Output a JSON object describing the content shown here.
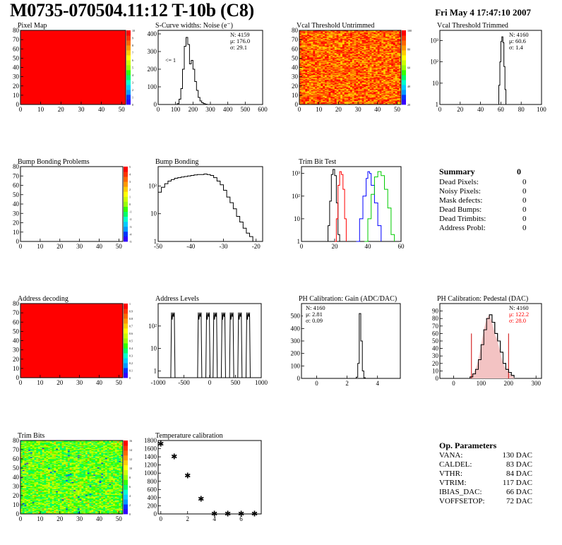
{
  "header": {
    "title": "M0735-070504.11:12 T-10b (C8)",
    "datetime": "Fri May  4 17:47:10 2007"
  },
  "colors": {
    "red": "#ff0000",
    "blue": "#0000ff",
    "green": "#00cc00",
    "dark_red": "#cc0000"
  },
  "summary": {
    "title": "Summary",
    "total": "0",
    "rows": [
      {
        "label": "Dead Pixels:",
        "value": "0"
      },
      {
        "label": "Noisy Pixels:",
        "value": "0"
      },
      {
        "label": "Mask defects:",
        "value": "0"
      },
      {
        "label": "Dead Bumps:",
        "value": "0"
      },
      {
        "label": "Dead Trimbits:",
        "value": "0"
      },
      {
        "label": "Address Probl:",
        "value": "0"
      }
    ]
  },
  "op_params": {
    "title": "Op. Parameters",
    "rows": [
      {
        "label": "VANA:",
        "value": "130 DAC"
      },
      {
        "label": "CALDEL:",
        "value": "83 DAC"
      },
      {
        "label": "VTHR:",
        "value": "84 DAC"
      },
      {
        "label": "VTRIM:",
        "value": "117 DAC"
      },
      {
        "label": "IBIAS_DAC:",
        "value": "66 DAC"
      },
      {
        "label": "VOFFSETOP:",
        "value": "72 DAC"
      }
    ]
  },
  "chart_data": [
    {
      "id": "pixel-map",
      "type": "heatmap",
      "title": "Pixel Map",
      "fill": "uniform-red",
      "xlim": [
        0,
        52
      ],
      "ylim": [
        0,
        80
      ],
      "xticks": [
        0,
        10,
        20,
        30,
        40,
        50
      ],
      "yticks": [
        0,
        10,
        20,
        30,
        40,
        50,
        60,
        70,
        80
      ],
      "zlim": [
        0,
        10
      ],
      "zticks": [
        0,
        1,
        2,
        3,
        4,
        5,
        6,
        7,
        8,
        9,
        10
      ]
    },
    {
      "id": "scurve-widths",
      "type": "histogram",
      "title": "S-Curve widths: Noise (e⁻)",
      "xlim": [
        0,
        600
      ],
      "ylim": [
        0,
        420
      ],
      "xticks": [
        0,
        100,
        200,
        300,
        400,
        500,
        600
      ],
      "yticks": [
        0,
        100,
        200,
        300,
        400
      ],
      "annotation": "<= 1",
      "stats": [
        {
          "label": "N: 4159"
        },
        {
          "label": "μ: 176.0"
        },
        {
          "label": "σ: 29.1"
        }
      ],
      "points": [
        [
          100,
          0
        ],
        [
          110,
          5
        ],
        [
          120,
          30
        ],
        [
          130,
          90
        ],
        [
          140,
          200
        ],
        [
          150,
          330
        ],
        [
          160,
          380
        ],
        [
          170,
          340
        ],
        [
          180,
          230
        ],
        [
          190,
          250
        ],
        [
          200,
          200
        ],
        [
          210,
          130
        ],
        [
          220,
          80
        ],
        [
          230,
          40
        ],
        [
          240,
          20
        ],
        [
          250,
          10
        ],
        [
          260,
          5
        ],
        [
          270,
          2
        ],
        [
          280,
          0
        ]
      ]
    },
    {
      "id": "vcal-untrimmed",
      "type": "heatmap",
      "title": "Vcal Threshold Untrimmed",
      "fill": "noisy-orange",
      "xlim": [
        0,
        52
      ],
      "ylim": [
        0,
        80
      ],
      "xticks": [
        0,
        10,
        20,
        30,
        40,
        50
      ],
      "yticks": [
        0,
        10,
        20,
        30,
        40,
        50,
        60,
        70,
        80
      ],
      "zticks": [
        20,
        40,
        60,
        80,
        100
      ]
    },
    {
      "id": "vcal-trimmed",
      "type": "histogram",
      "title": "Vcal Threshold Trimmed",
      "log_y": true,
      "xlim": [
        0,
        100
      ],
      "ylim": [
        1,
        3000
      ],
      "xticks": [
        0,
        20,
        40,
        60,
        80,
        100
      ],
      "yticks": [
        1,
        10,
        100,
        1000
      ],
      "stats": [
        {
          "label": "N: 4160"
        },
        {
          "label": "μ: 60.6"
        },
        {
          "label": "σ: 1.4"
        }
      ],
      "points": [
        [
          57,
          1
        ],
        [
          58,
          8
        ],
        [
          59,
          100
        ],
        [
          60,
          900
        ],
        [
          61,
          1500
        ],
        [
          62,
          800
        ],
        [
          63,
          60
        ],
        [
          64,
          5
        ],
        [
          65,
          1
        ]
      ]
    },
    {
      "id": "bump-bonding-problems",
      "type": "heatmap",
      "title": "Bump Bonding Problems",
      "fill": "empty",
      "xlim": [
        0,
        52
      ],
      "ylim": [
        0,
        80
      ],
      "xticks": [
        0,
        10,
        20,
        30,
        40,
        50
      ],
      "yticks": [
        0,
        10,
        20,
        30,
        40,
        50,
        60,
        70,
        80
      ],
      "zticks": [
        -5,
        -4,
        -3,
        -2,
        -1,
        0,
        1,
        2,
        3,
        4,
        5
      ]
    },
    {
      "id": "bump-bonding",
      "type": "histogram",
      "title": "Bump Bonding",
      "log_y": true,
      "xlim": [
        -50,
        -18
      ],
      "ylim": [
        1,
        500
      ],
      "xticks": [
        -50,
        -40,
        -30,
        -20
      ],
      "yticks": [
        1,
        10,
        100
      ],
      "points": [
        [
          -50,
          60
        ],
        [
          -49,
          90
        ],
        [
          -48,
          120
        ],
        [
          -47,
          150
        ],
        [
          -46,
          170
        ],
        [
          -45,
          190
        ],
        [
          -44,
          200
        ],
        [
          -43,
          210
        ],
        [
          -42,
          220
        ],
        [
          -41,
          230
        ],
        [
          -40,
          240
        ],
        [
          -39,
          250
        ],
        [
          -38,
          260
        ],
        [
          -37,
          260
        ],
        [
          -36,
          270
        ],
        [
          -35,
          260
        ],
        [
          -34,
          240
        ],
        [
          -33,
          200
        ],
        [
          -32,
          150
        ],
        [
          -31,
          110
        ],
        [
          -30,
          70
        ],
        [
          -29,
          40
        ],
        [
          -28,
          25
        ],
        [
          -27,
          15
        ],
        [
          -26,
          8
        ],
        [
          -25,
          5
        ],
        [
          -24,
          3
        ],
        [
          -23,
          2
        ],
        [
          -22,
          1.5
        ],
        [
          -21,
          1
        ]
      ]
    },
    {
      "id": "trim-bit-test",
      "type": "histogram",
      "title": "Trim Bit Test",
      "log_y": true,
      "xlim": [
        0,
        60
      ],
      "ylim": [
        1,
        2000
      ],
      "xticks": [
        0,
        20,
        40,
        60
      ],
      "yticks": [
        1,
        10,
        100,
        1000
      ],
      "series": [
        {
          "color": "black",
          "points": [
            [
              15,
              1
            ],
            [
              16,
              5
            ],
            [
              17,
              60
            ],
            [
              18,
              900
            ],
            [
              19,
              1500
            ],
            [
              20,
              800
            ],
            [
              21,
              50
            ],
            [
              22,
              2
            ],
            [
              23,
              1
            ]
          ]
        },
        {
          "color": "red",
          "points": [
            [
              20,
              1
            ],
            [
              21,
              10
            ],
            [
              22,
              300
            ],
            [
              23,
              1200
            ],
            [
              24,
              900
            ],
            [
              25,
              200
            ],
            [
              26,
              10
            ],
            [
              27,
              1
            ]
          ]
        },
        {
          "color": "blue",
          "points": [
            [
              33,
              1
            ],
            [
              35,
              10
            ],
            [
              37,
              100
            ],
            [
              39,
              600
            ],
            [
              40,
              1200
            ],
            [
              41,
              1000
            ],
            [
              42,
              300
            ],
            [
              44,
              50
            ],
            [
              46,
              5
            ],
            [
              48,
              1
            ]
          ]
        },
        {
          "color": "green",
          "points": [
            [
              38,
              1
            ],
            [
              40,
              10
            ],
            [
              42,
              120
            ],
            [
              44,
              700
            ],
            [
              46,
              1200
            ],
            [
              48,
              800
            ],
            [
              50,
              200
            ],
            [
              52,
              30
            ],
            [
              54,
              2
            ],
            [
              56,
              1
            ]
          ]
        }
      ]
    },
    {
      "id": "address-decoding",
      "type": "heatmap",
      "title": "Address decoding",
      "fill": "uniform-red",
      "xlim": [
        0,
        52
      ],
      "ylim": [
        0,
        80
      ],
      "xticks": [
        0,
        10,
        20,
        30,
        40,
        50
      ],
      "yticks": [
        0,
        10,
        20,
        30,
        40,
        50,
        60,
        70,
        80
      ],
      "zticks": [
        0,
        0.1,
        0.2,
        0.3,
        0.4,
        0.5,
        0.6,
        0.7,
        0.8,
        0.9,
        1
      ]
    },
    {
      "id": "address-levels",
      "type": "histogram",
      "title": "Address Levels",
      "log_y": true,
      "xlim": [
        -1000,
        1000
      ],
      "ylim": [
        0.5,
        1000
      ],
      "xticks": [
        -1000,
        -500,
        0,
        500,
        1000
      ],
      "yticks": [
        1,
        10,
        100
      ],
      "peaks": [
        -700,
        -180,
        -20,
        120,
        280,
        440,
        600,
        760
      ],
      "peak_height": 400
    },
    {
      "id": "ph-gain",
      "type": "histogram",
      "title": "PH Calibration: Gain (ADC/DAC)",
      "xlim": [
        -1,
        5.5
      ],
      "ylim": [
        0,
        600
      ],
      "xticks": [
        0,
        2,
        4
      ],
      "yticks": [
        0,
        100,
        200,
        300,
        400,
        500
      ],
      "stats": [
        {
          "label": "N: 4160"
        },
        {
          "label": "μ: 2.81"
        },
        {
          "label": "σ: 0.09"
        }
      ],
      "points": [
        [
          2.5,
          0
        ],
        [
          2.6,
          10
        ],
        [
          2.7,
          120
        ],
        [
          2.8,
          520
        ],
        [
          2.9,
          300
        ],
        [
          3.0,
          60
        ],
        [
          3.1,
          5
        ],
        [
          3.2,
          0
        ]
      ]
    },
    {
      "id": "ph-pedestal",
      "type": "histogram",
      "title": "PH Calibration: Pedestal (DAC)",
      "xlim": [
        -50,
        320
      ],
      "ylim": [
        0,
        100
      ],
      "xticks": [
        0,
        100,
        200,
        300
      ],
      "yticks": [
        0,
        10,
        20,
        30,
        40,
        50,
        60,
        70,
        80,
        90
      ],
      "stats": [
        {
          "label": "N: 4160",
          "color": "black"
        },
        {
          "label": "μ: 122.2",
          "color": "red"
        },
        {
          "label": "σ: 28.0",
          "color": "red"
        }
      ],
      "points": [
        [
          60,
          2
        ],
        [
          70,
          6
        ],
        [
          80,
          12
        ],
        [
          90,
          25
        ],
        [
          100,
          45
        ],
        [
          110,
          65
        ],
        [
          120,
          80
        ],
        [
          130,
          85
        ],
        [
          140,
          75
        ],
        [
          150,
          60
        ],
        [
          160,
          50
        ],
        [
          170,
          35
        ],
        [
          180,
          20
        ],
        [
          190,
          12
        ],
        [
          200,
          8
        ],
        [
          210,
          4
        ],
        [
          220,
          1
        ]
      ],
      "fit_lines": [
        65,
        200
      ]
    },
    {
      "id": "trim-bits",
      "type": "heatmap",
      "title": "Trim Bits",
      "fill": "noisy-green",
      "xlim": [
        0,
        52
      ],
      "ylim": [
        0,
        80
      ],
      "xticks": [
        0,
        10,
        20,
        30,
        40,
        50
      ],
      "yticks": [
        0,
        10,
        20,
        30,
        40,
        50,
        60,
        70,
        80
      ],
      "zticks": [
        0,
        2,
        4,
        6,
        8,
        10,
        12,
        14,
        16
      ]
    },
    {
      "id": "temperature-calibration",
      "type": "scatter",
      "title": "Temperature calibration",
      "xlim": [
        -0.2,
        7.5
      ],
      "ylim": [
        0,
        1800
      ],
      "xticks": [
        0,
        2,
        4,
        6
      ],
      "yticks": [
        0,
        200,
        400,
        600,
        800,
        1000,
        1200,
        1400,
        1600,
        1800
      ],
      "points": [
        [
          0,
          1720
        ],
        [
          1,
          1410
        ],
        [
          2,
          940
        ],
        [
          3,
          370
        ],
        [
          4,
          10
        ],
        [
          5,
          10
        ],
        [
          6,
          10
        ],
        [
          7,
          10
        ]
      ]
    }
  ]
}
